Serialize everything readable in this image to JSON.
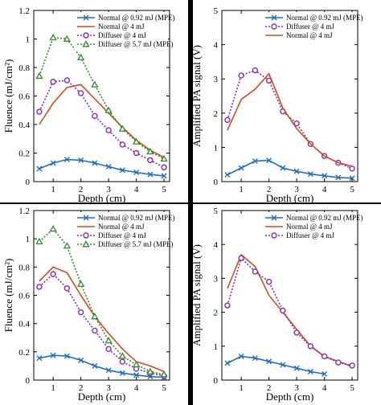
{
  "chart_data": [
    {
      "type": "line",
      "xlabel": "Depth (cm)",
      "ylabel": "Fluence (mJ/cm²)",
      "xlim": [
        0.3,
        5.2
      ],
      "ylim": [
        0,
        1.2
      ],
      "xticks": [
        "1",
        "2",
        "3",
        "4",
        "5"
      ],
      "yticks": [
        "0",
        "0.2",
        "0.4",
        "0.6",
        "0.8",
        "1",
        "1.2"
      ],
      "grid": false,
      "legend": "top-right",
      "series": [
        {
          "name": "Normal @ 0.92 mJ (MPE)",
          "color": "#1f6fbf",
          "dash": "",
          "marker": "x",
          "x": [
            0.5,
            1,
            1.5,
            2,
            2.5,
            3,
            3.5,
            4,
            4.5,
            5
          ],
          "y": [
            0.09,
            0.13,
            0.155,
            0.15,
            0.13,
            0.105,
            0.08,
            0.065,
            0.05,
            0.04
          ]
        },
        {
          "name": "Normal @ 4 mJ",
          "color": "#c8501e",
          "dash": "",
          "marker": "none",
          "x": [
            0.5,
            1,
            1.5,
            2,
            2.5,
            3,
            3.5,
            4,
            4.5,
            5
          ],
          "y": [
            0.4,
            0.55,
            0.66,
            0.68,
            0.58,
            0.48,
            0.38,
            0.29,
            0.22,
            0.17
          ]
        },
        {
          "name": "Diffuser @ 4 mJ",
          "color": "#8a2aa8",
          "dash": "2,2",
          "marker": "circle",
          "x": [
            0.5,
            1,
            1.5,
            2,
            2.5,
            3,
            3.5,
            4,
            4.5,
            5
          ],
          "y": [
            0.49,
            0.7,
            0.71,
            0.62,
            0.46,
            0.36,
            0.26,
            0.2,
            0.15,
            0.1
          ]
        },
        {
          "name": "Diffuser @ 5.7 mJ (MPE)",
          "color": "#2f8a2f",
          "dash": "2,2",
          "marker": "triangle",
          "x": [
            0.5,
            1,
            1.5,
            2,
            2.5,
            3,
            3.5,
            4,
            4.5,
            5
          ],
          "y": [
            0.74,
            1.01,
            1.0,
            0.87,
            0.68,
            0.5,
            0.37,
            0.28,
            0.21,
            0.16
          ]
        }
      ]
    },
    {
      "type": "line",
      "xlabel": "Depth (cm)",
      "ylabel": "Amplified PA signal (V)",
      "xlim": [
        0.3,
        5.2
      ],
      "ylim": [
        0,
        5
      ],
      "xticks": [
        "1",
        "2",
        "3",
        "4",
        "5"
      ],
      "yticks": [
        "0",
        "1",
        "2",
        "3",
        "4",
        "5"
      ],
      "grid": false,
      "legend": "top-right",
      "series": [
        {
          "name": "Normal @ 0.92 mJ (MPE)",
          "color": "#1f6fbf",
          "dash": "",
          "marker": "x",
          "x": [
            0.5,
            1,
            1.5,
            2,
            2.5,
            3,
            3.5,
            4,
            4.5,
            5
          ],
          "y": [
            0.2,
            0.4,
            0.6,
            0.62,
            0.4,
            0.3,
            0.22,
            0.17,
            0.12,
            0.1
          ]
        },
        {
          "name": "Diffuser @ 4 mJ",
          "color": "#8a2aa8",
          "dash": "2,2",
          "marker": "circle",
          "x": [
            0.5,
            1,
            1.5,
            2,
            2.5,
            3,
            3.5,
            4,
            4.5,
            5
          ],
          "y": [
            1.8,
            3.1,
            3.25,
            2.95,
            2.05,
            1.7,
            1.1,
            0.75,
            0.55,
            0.38
          ]
        },
        {
          "name": "Normal @ 4 mJ",
          "color": "#c8501e",
          "dash": "",
          "marker": "none",
          "x": [
            0.5,
            1,
            1.5,
            2,
            2.5,
            3,
            3.5,
            4,
            4.5,
            5
          ],
          "y": [
            1.5,
            2.4,
            2.7,
            3.15,
            2.15,
            1.55,
            1.1,
            0.75,
            0.55,
            0.45
          ]
        }
      ]
    },
    {
      "type": "line",
      "xlabel": "Depth (cm)",
      "ylabel": "Fluence (mJ/cm²)",
      "xlim": [
        0.3,
        5.2
      ],
      "ylim": [
        0,
        1.2
      ],
      "xticks": [
        "1",
        "2",
        "3",
        "4",
        "5"
      ],
      "yticks": [
        "0",
        "0.2",
        "0.4",
        "0.6",
        "0.8",
        "1",
        "1.2"
      ],
      "grid": false,
      "legend": "top-right",
      "series": [
        {
          "name": "Normal @ 0.92 mJ (MPE)",
          "color": "#1f6fbf",
          "dash": "",
          "marker": "x",
          "x": [
            0.5,
            1,
            1.5,
            2,
            2.5,
            3,
            3.5,
            4,
            4.5,
            5
          ],
          "y": [
            0.155,
            0.175,
            0.17,
            0.14,
            0.1,
            0.07,
            0.05,
            0.035,
            0.025,
            0.02
          ]
        },
        {
          "name": "Normal @ 4 mJ",
          "color": "#c8501e",
          "dash": "",
          "marker": "none",
          "x": [
            0.5,
            1,
            1.5,
            2,
            2.5,
            3,
            3.5,
            4,
            4.5,
            5
          ],
          "y": [
            0.7,
            0.8,
            0.76,
            0.6,
            0.45,
            0.33,
            0.22,
            0.13,
            0.1,
            0.06
          ]
        },
        {
          "name": "Diffuser @ 4 mJ",
          "color": "#8a2aa8",
          "dash": "2,2",
          "marker": "circle",
          "x": [
            0.5,
            1,
            1.5,
            2,
            2.5,
            3,
            3.5,
            4,
            4.5,
            5
          ],
          "y": [
            0.66,
            0.75,
            0.65,
            0.48,
            0.35,
            0.22,
            0.13,
            0.08,
            0.05,
            0.03
          ]
        },
        {
          "name": "Diffuser @ 5.7 mJ (MPE)",
          "color": "#2f8a2f",
          "dash": "2,2",
          "marker": "triangle",
          "x": [
            0.5,
            1,
            1.5,
            2,
            2.5,
            3,
            3.5,
            4,
            4.5,
            5
          ],
          "y": [
            0.98,
            1.07,
            0.95,
            0.68,
            0.45,
            0.28,
            0.17,
            0.11,
            0.06,
            0.04
          ]
        }
      ]
    },
    {
      "type": "line",
      "xlabel": "Depth (cm)",
      "ylabel": "Amplified PA signal (V)",
      "xlim": [
        0.3,
        5.2
      ],
      "ylim": [
        0,
        5
      ],
      "xticks": [
        "1",
        "2",
        "3",
        "4",
        "5"
      ],
      "yticks": [
        "0",
        "1",
        "2",
        "3",
        "4",
        "5"
      ],
      "grid": false,
      "legend": "top-right",
      "series": [
        {
          "name": "Normal @ 0.92 mJ (MPE)",
          "color": "#1f6fbf",
          "dash": "",
          "marker": "x",
          "x": [
            0.5,
            1,
            1.5,
            2,
            2.5,
            3,
            3.5,
            4
          ],
          "y": [
            0.5,
            0.7,
            0.65,
            0.55,
            0.45,
            0.35,
            0.25,
            0.18
          ]
        },
        {
          "name": "Normal @ 4 mJ",
          "color": "#c8501e",
          "dash": "",
          "marker": "none",
          "x": [
            0.5,
            1,
            1.5,
            2,
            2.5,
            3,
            3.5,
            4,
            4.5,
            5
          ],
          "y": [
            2.7,
            3.7,
            3.35,
            2.5,
            2.0,
            1.5,
            1.0,
            0.7,
            0.55,
            0.4
          ]
        },
        {
          "name": "Diffuser @ 4 mJ",
          "color": "#8a2aa8",
          "dash": "2,2",
          "marker": "circle",
          "x": [
            0.5,
            1,
            1.5,
            2,
            2.5,
            3,
            3.5,
            4,
            4.5,
            5
          ],
          "y": [
            2.2,
            3.6,
            3.2,
            2.9,
            2.05,
            1.4,
            1.0,
            0.7,
            0.52,
            0.43
          ]
        }
      ]
    }
  ]
}
